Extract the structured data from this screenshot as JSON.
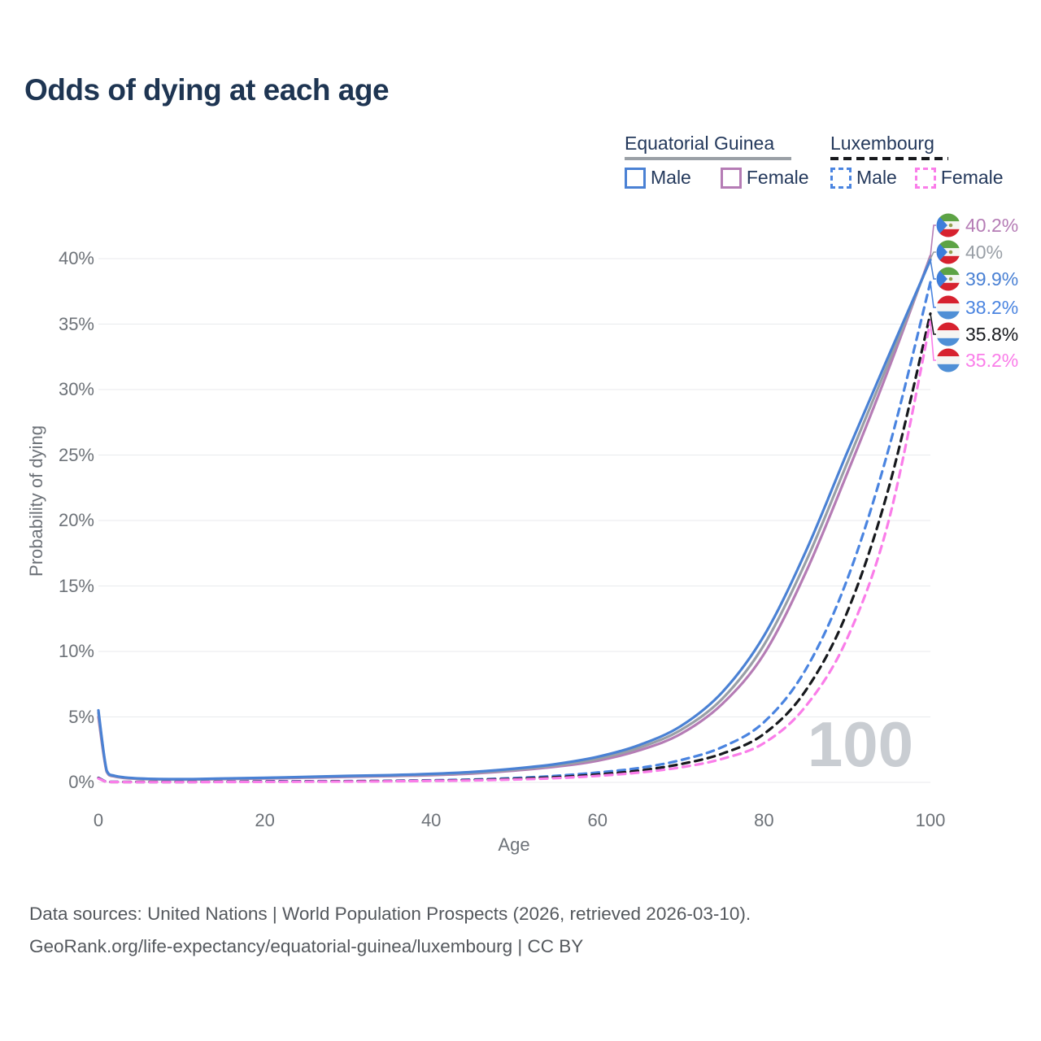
{
  "title": "Odds of dying at each age",
  "legend": {
    "groups": [
      {
        "name": "Equatorial Guinea",
        "line_style": "solid",
        "underline_color": "#9aa0a6",
        "items": [
          {
            "label": "Male",
            "color": "#4a81d4",
            "dashed": false
          },
          {
            "label": "Female",
            "color": "#b57cb5",
            "dashed": false
          }
        ]
      },
      {
        "name": "Luxembourg",
        "line_style": "dashed",
        "underline_color": "#17191d",
        "items": [
          {
            "label": "Male",
            "color": "#4a84e0",
            "dashed": true
          },
          {
            "label": "Female",
            "color": "#fa7de9",
            "dashed": true
          }
        ]
      }
    ]
  },
  "axes": {
    "x_label": "Age",
    "y_label": "Probability of dying",
    "x_ticks": [
      0,
      20,
      40,
      60,
      80,
      100
    ],
    "y_ticks": [
      "0%",
      "5%",
      "10%",
      "15%",
      "20%",
      "25%",
      "30%",
      "35%",
      "40%"
    ]
  },
  "watermark": "100",
  "chart_data": {
    "type": "line",
    "title": "Odds of dying at each age",
    "xlabel": "Age",
    "ylabel": "Probability of dying",
    "xlim": [
      0,
      100
    ],
    "ylim": [
      0,
      40
    ],
    "grid": "horizontal",
    "legend_position": "top-right",
    "x": [
      0,
      1,
      2,
      5,
      10,
      15,
      20,
      25,
      30,
      35,
      40,
      45,
      50,
      55,
      60,
      65,
      70,
      75,
      80,
      85,
      90,
      95,
      100
    ],
    "series": [
      {
        "name": "Equatorial Guinea Female",
        "country": "Equatorial Guinea",
        "sex": "Female",
        "color": "#b57cb5",
        "dashed": false,
        "flag": "gq",
        "end_label": "40.2%",
        "values": [
          5.0,
          0.8,
          0.44,
          0.26,
          0.21,
          0.25,
          0.3,
          0.36,
          0.43,
          0.48,
          0.55,
          0.68,
          0.9,
          1.2,
          1.65,
          2.45,
          3.7,
          6.0,
          9.8,
          16.0,
          23.6,
          31.6,
          40.2
        ]
      },
      {
        "name": "Equatorial Guinea Both sexes",
        "country": "Equatorial Guinea",
        "sex": "Both",
        "color": "#999fa6",
        "dashed": false,
        "flag": "gq",
        "end_label": "40%",
        "values": [
          5.3,
          0.85,
          0.47,
          0.28,
          0.23,
          0.28,
          0.33,
          0.4,
          0.47,
          0.52,
          0.6,
          0.74,
          0.97,
          1.3,
          1.8,
          2.65,
          4.0,
          6.4,
          10.5,
          16.8,
          24.4,
          32.1,
          40.0
        ]
      },
      {
        "name": "Equatorial Guinea Male",
        "country": "Equatorial Guinea",
        "sex": "Male",
        "color": "#4a81d4",
        "dashed": false,
        "flag": "gq",
        "end_label": "39.9%",
        "values": [
          5.5,
          0.9,
          0.5,
          0.3,
          0.25,
          0.3,
          0.35,
          0.42,
          0.5,
          0.55,
          0.65,
          0.8,
          1.05,
          1.4,
          1.95,
          2.85,
          4.3,
          6.9,
          11.2,
          17.6,
          25.2,
          32.6,
          39.9
        ]
      },
      {
        "name": "Luxembourg Male",
        "country": "Luxembourg",
        "sex": "Male",
        "color": "#4a84e0",
        "dashed": true,
        "flag": "lu",
        "end_label": "38.2%",
        "values": [
          0.35,
          0.05,
          0.04,
          0.03,
          0.03,
          0.05,
          0.08,
          0.09,
          0.1,
          0.12,
          0.16,
          0.22,
          0.33,
          0.5,
          0.75,
          1.1,
          1.7,
          2.7,
          4.6,
          8.6,
          15.5,
          25.5,
          38.2
        ]
      },
      {
        "name": "Luxembourg Both sexes",
        "country": "Luxembourg",
        "sex": "Both",
        "color": "#17191d",
        "dashed": true,
        "flag": "lu",
        "end_label": "35.8%",
        "values": [
          0.33,
          0.04,
          0.03,
          0.03,
          0.03,
          0.04,
          0.06,
          0.07,
          0.08,
          0.1,
          0.13,
          0.18,
          0.27,
          0.4,
          0.6,
          0.9,
          1.4,
          2.2,
          3.7,
          7.0,
          13.0,
          22.5,
          35.8
        ]
      },
      {
        "name": "Luxembourg Female",
        "country": "Luxembourg",
        "sex": "Female",
        "color": "#fa7de9",
        "dashed": true,
        "flag": "lu",
        "end_label": "35.2%",
        "values": [
          0.3,
          0.04,
          0.03,
          0.02,
          0.02,
          0.03,
          0.04,
          0.05,
          0.06,
          0.08,
          0.11,
          0.15,
          0.22,
          0.32,
          0.5,
          0.75,
          1.15,
          1.8,
          3.0,
          5.8,
          11.0,
          20.0,
          35.2
        ]
      }
    ],
    "end_label_order_top_to_bottom": [
      "40.2%",
      "40%",
      "39.9%",
      "38.2%",
      "35.8%",
      "35.2%"
    ]
  },
  "footer": {
    "line1": "Data sources: United Nations | World Population Prospects (2026, retrieved 2026-03-10).",
    "line2": "GeoRank.org/life-expectancy/equatorial-guinea/luxembourg | CC BY"
  },
  "colors": {
    "title_text": "#1e3552",
    "axis_text": "#6d7278",
    "gridline": "#e8eaed",
    "watermark": "#c9cdd2",
    "footer_text": "#54585d"
  }
}
